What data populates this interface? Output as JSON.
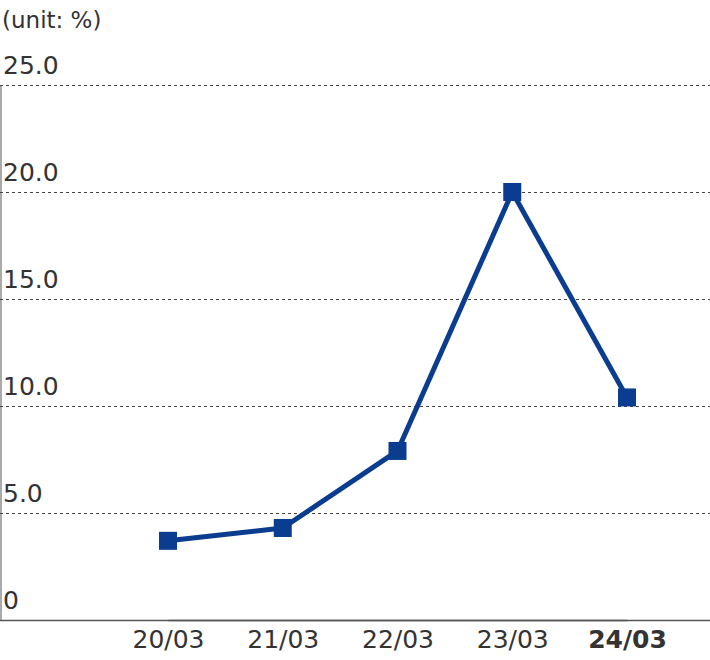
{
  "chart_data": {
    "type": "line",
    "y_label": "(unit: %)",
    "categories": [
      "20/03",
      "21/03",
      "22/03",
      "23/03",
      "24/03"
    ],
    "values": [
      3.7,
      4.3,
      7.9,
      20.0,
      10.4
    ],
    "color": "#0a3d8f",
    "marker": "square",
    "ylim": [
      0,
      25
    ],
    "yticks": [
      0,
      {
        "value": 5,
        "label": "5.0"
      },
      {
        "value": 10,
        "label": "10.0"
      },
      {
        "value": 15,
        "label": "15.0"
      },
      {
        "value": 20,
        "label": "20.0"
      },
      {
        "value": 25,
        "label": "25.0"
      }
    ],
    "grid": true
  }
}
